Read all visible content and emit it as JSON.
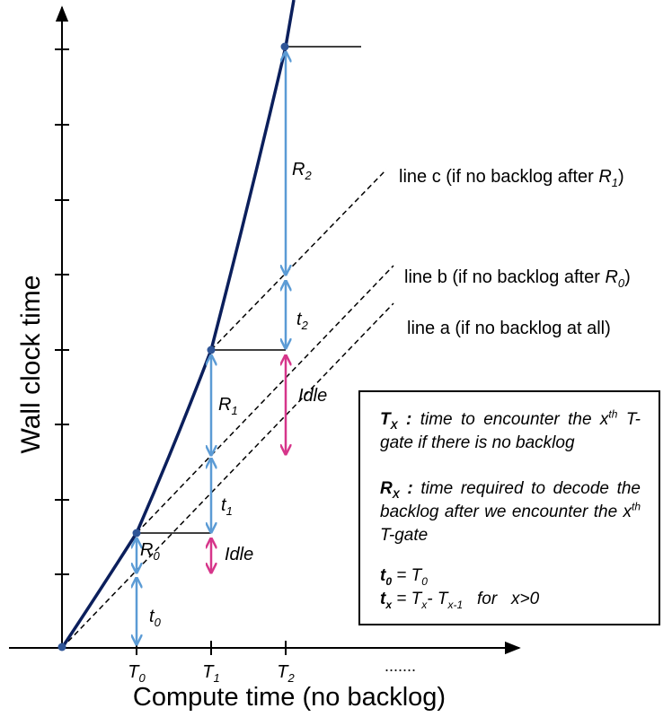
{
  "axes": {
    "y_label": "Wall clock time",
    "x_label": "Compute time (no backlog)",
    "x_ticks": [
      {
        "base": "T",
        "sub": "0"
      },
      {
        "base": "T",
        "sub": "1"
      },
      {
        "base": "T",
        "sub": "2"
      }
    ],
    "x_ellipsis": "......."
  },
  "lines": {
    "c": {
      "text": "line c (if no backlog after ",
      "sym": "R",
      "sub": "1",
      "close": ")"
    },
    "b": {
      "text": "line b (if no backlog after ",
      "sym": "R",
      "sub": "0",
      "close": ")"
    },
    "a": {
      "text": "line a (if no backlog at all)"
    }
  },
  "segments": {
    "R0": {
      "base": "R",
      "sub": "0"
    },
    "R1": {
      "base": "R",
      "sub": "1"
    },
    "R2": {
      "base": "R",
      "sub": "2"
    },
    "t0": {
      "base": "t",
      "sub": "0"
    },
    "t1": {
      "base": "t",
      "sub": "1"
    },
    "t2": {
      "base": "t",
      "sub": "2"
    },
    "idle": "Idle"
  },
  "legend": {
    "tx": {
      "sym": "T",
      "sym_sub": "X",
      "sep": " :",
      "text_a": " time to encounter the x",
      "sup": "th",
      "text_b": " T-gate if there is no backlog"
    },
    "rx": {
      "sym": "R",
      "sym_sub": "X",
      "sep": " :",
      "text_a": " time required to decode the backlog after we encounter the x",
      "sup": "th",
      "text_b": " T-gate"
    },
    "t0_def": {
      "sym": "t",
      "sym_sub": "0",
      "text": " = T",
      "text_sub": "0"
    },
    "tx_def": {
      "sym": "t",
      "sym_sub": "x",
      "text_a": " = T",
      "sub_a": "x",
      "text_b": "- T",
      "sub_b": "x-1",
      "text_c": "   for   x>0"
    }
  },
  "colors": {
    "curve": "#0b1f5c",
    "blue_arrow": "#5b9bd5",
    "idle_arrow": "#d6358a",
    "axis": "#000000"
  }
}
